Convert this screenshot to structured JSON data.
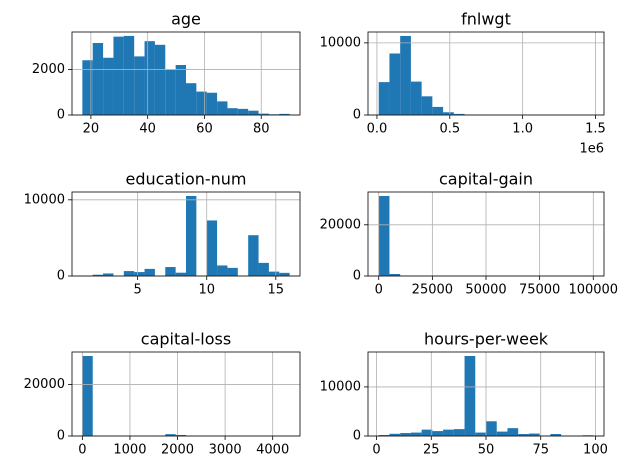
{
  "chart_data": [
    {
      "type": "histogram",
      "title": "age",
      "color": "#1f77b4",
      "grid": true,
      "bins": [
        17,
        20.65,
        24.3,
        27.95,
        31.6,
        35.25,
        38.9,
        42.55,
        46.2,
        49.85,
        53.5,
        57.15,
        60.8,
        64.45,
        68.1,
        71.75,
        75.4,
        79.05,
        82.7,
        86.35,
        90
      ],
      "values": [
        2410,
        3170,
        2520,
        3450,
        3480,
        2580,
        3250,
        3090,
        2000,
        2200,
        1400,
        1030,
        980,
        600,
        300,
        270,
        190,
        60,
        30,
        50
      ],
      "xlim": [
        13.35,
        93.65
      ],
      "xticks": [
        20,
        40,
        60,
        80
      ],
      "ylim": [
        0,
        3654
      ],
      "yticks": [
        0,
        2000
      ]
    },
    {
      "type": "histogram",
      "title": "fnlwgt",
      "color": "#1f77b4",
      "grid": true,
      "offset_text": "1e6",
      "bins": [
        12285,
        85906,
        159527,
        233148,
        306769,
        380390,
        454011,
        527632,
        601253,
        674874,
        748495,
        822116,
        895737,
        969358,
        1042979,
        1116600,
        1190221,
        1263842,
        1337463,
        1411084,
        1484705
      ],
      "values": [
        4560,
        8530,
        10960,
        4630,
        2590,
        1120,
        380,
        150,
        60,
        30,
        15,
        8,
        6,
        3,
        2,
        1,
        0,
        0,
        1,
        2
      ],
      "xlim": [
        -61336,
        1558326
      ],
      "xticks": [
        {
          "value": 0,
          "label": "0.0"
        },
        {
          "value": 500000,
          "label": "0.5"
        },
        {
          "value": 1000000,
          "label": "1.0"
        },
        {
          "value": 1500000,
          "label": "1.5"
        }
      ],
      "ylim": [
        0,
        11508
      ],
      "yticks": [
        0,
        10000
      ]
    },
    {
      "type": "histogram",
      "title": "education-num",
      "color": "#1f77b4",
      "grid": true,
      "bins": [
        1,
        1.75,
        2.5,
        3.25,
        4,
        4.75,
        5.5,
        6.25,
        7,
        7.75,
        8.5,
        9.25,
        10,
        10.75,
        11.5,
        12.25,
        13,
        13.75,
        14.5,
        15.25,
        16
      ],
      "values": [
        51,
        168,
        333,
        0,
        646,
        514,
        933,
        0,
        1175,
        433,
        10501,
        0,
        7291,
        1382,
        1067,
        0,
        5355,
        1723,
        576,
        413
      ],
      "xlim": [
        0.25,
        16.75
      ],
      "xticks": [
        5,
        10,
        15
      ],
      "ylim": [
        0,
        11026
      ],
      "yticks": [
        0,
        10000
      ]
    },
    {
      "type": "histogram",
      "title": "capital-gain",
      "color": "#1f77b4",
      "grid": true,
      "bins": [
        0,
        4999.95,
        9999.9,
        14999.85,
        19999.8,
        24999.75,
        29999.7,
        34999.65,
        39999.6,
        44999.55,
        49999.5,
        54999.45,
        59999.4,
        64999.35,
        69999.3,
        74999.25,
        79999.2,
        84999.15,
        89999.1,
        94999.05,
        99999
      ],
      "values": [
        31245,
        786,
        183,
        5,
        11,
        0,
        0,
        0,
        0,
        0,
        0,
        0,
        0,
        0,
        0,
        0,
        0,
        0,
        0,
        159
      ],
      "xlim": [
        -4999.95,
        104998.95
      ],
      "xticks": [
        0,
        25000,
        50000,
        75000,
        100000
      ],
      "ylim": [
        0,
        32807
      ],
      "yticks": [
        0,
        20000
      ]
    },
    {
      "type": "histogram",
      "title": "capital-loss",
      "color": "#1f77b4",
      "grid": true,
      "bins": [
        0,
        217.8,
        435.6,
        653.4,
        871.2,
        1089,
        1306.8,
        1524.6,
        1742.4,
        1960.2,
        2178,
        2395.8,
        2613.6,
        2831.4,
        3049.2,
        3267,
        3484.8,
        3702.6,
        3920.4,
        4138.2,
        4356
      ],
      "values": [
        31042,
        0,
        0,
        0,
        2,
        10,
        30,
        180,
        720,
        400,
        160,
        20,
        10,
        0,
        0,
        0,
        1,
        2,
        0,
        3
      ],
      "xlim": [
        -217.8,
        4573.8
      ],
      "xticks": [
        0,
        1000,
        2000,
        3000,
        4000
      ],
      "ylim": [
        0,
        32594
      ],
      "yticks": [
        0,
        20000
      ]
    },
    {
      "type": "histogram",
      "title": "hours-per-week",
      "color": "#1f77b4",
      "grid": true,
      "bins": [
        1,
        5.9,
        10.8,
        15.7,
        20.6,
        25.5,
        30.4,
        35.3,
        40.2,
        45.1,
        50,
        54.9,
        59.8,
        64.7,
        69.6,
        74.5,
        79.4,
        84.3,
        89.2,
        94.1,
        99
      ],
      "values": [
        200,
        450,
        600,
        700,
        1300,
        1000,
        1300,
        1400,
        16300,
        700,
        3000,
        900,
        1600,
        400,
        500,
        100,
        400,
        40,
        30,
        150
      ],
      "xlim": [
        -3.9,
        103.9
      ],
      "xticks": [
        0,
        25,
        50,
        75,
        100
      ],
      "ylim": [
        0,
        17115
      ],
      "yticks": [
        0,
        10000
      ]
    }
  ]
}
